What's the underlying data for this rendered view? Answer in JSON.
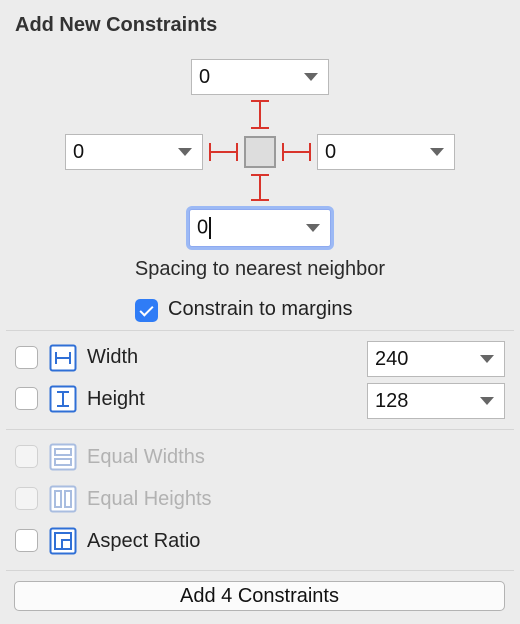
{
  "panel": {
    "title": "Add New Constraints"
  },
  "spacing": {
    "top": "0",
    "left": "0",
    "right": "0",
    "bottom": "0",
    "caption": "Spacing to nearest neighbor",
    "strut_color": "#d9342b"
  },
  "margins": {
    "label": "Constrain to margins",
    "checked": true
  },
  "size": {
    "width_label": "Width",
    "width_value": "240",
    "height_label": "Height",
    "height_value": "128"
  },
  "equal": {
    "widths_label": "Equal Widths",
    "heights_label": "Equal Heights",
    "aspect_label": "Aspect Ratio"
  },
  "footer": {
    "add_button": "Add 4 Constraints"
  },
  "colors": {
    "accent": "#2f7cf6",
    "icon_blue": "#2f6fd6",
    "focus_ring": "#9cb9f5"
  }
}
